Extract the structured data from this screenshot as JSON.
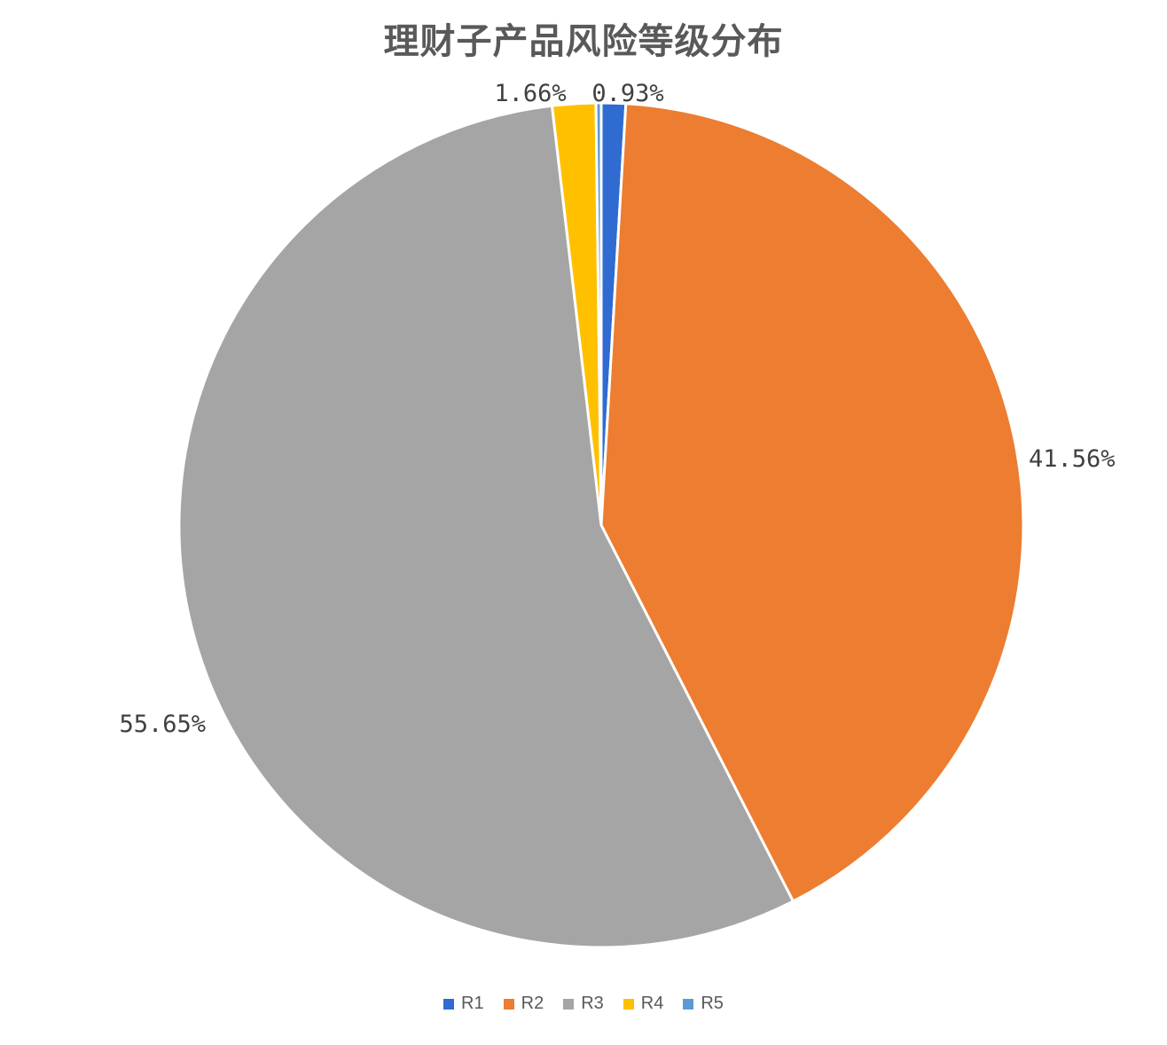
{
  "chart_data": {
    "type": "pie",
    "title": "理财子产品风险等级分布",
    "categories": [
      "R1",
      "R2",
      "R3",
      "R4",
      "R5"
    ],
    "values": [
      0.93,
      41.56,
      55.65,
      1.66,
      0.2
    ],
    "labels": [
      "0.93%",
      "41.56%",
      "55.65%",
      "1.66%",
      ""
    ],
    "colors": [
      "#2F6BD1",
      "#ED7D31",
      "#A5A5A5",
      "#FFC000",
      "#5B9BD5"
    ],
    "legend": "bottom"
  }
}
